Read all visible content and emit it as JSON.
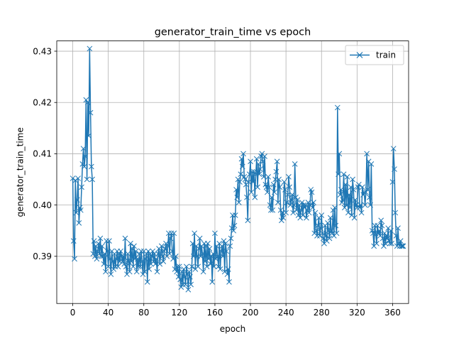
{
  "chart_data": {
    "type": "line",
    "title": "generator_train_time vs epoch",
    "xlabel": "epoch",
    "ylabel": "generator_train_time",
    "xlim": [
      -18,
      378
    ],
    "ylim": [
      0.3808,
      0.432
    ],
    "xticks": [
      0,
      40,
      80,
      120,
      160,
      200,
      240,
      280,
      320,
      360
    ],
    "yticks": [
      0.39,
      0.4,
      0.41,
      0.42,
      0.43
    ],
    "ytick_labels": [
      "0.39",
      "0.40",
      "0.41",
      "0.42",
      "0.43"
    ],
    "grid": true,
    "legend_position": "upper right",
    "series": [
      {
        "name": "train",
        "color": "#1f77b4",
        "marker": "x",
        "x_start": 0,
        "x_step": 1,
        "values": [
          0.4052,
          0.393,
          0.3895,
          0.4048,
          0.3985,
          0.401,
          0.4052,
          0.3965,
          0.3995,
          0.399,
          0.4035,
          0.408,
          0.411,
          0.4075,
          0.4095,
          0.4205,
          0.405,
          0.42,
          0.4135,
          0.4305,
          0.418,
          0.4075,
          0.405,
          0.3905,
          0.393,
          0.39,
          0.392,
          0.3895,
          0.391,
          0.3925,
          0.3905,
          0.3935,
          0.39,
          0.392,
          0.39,
          0.3885,
          0.3905,
          0.387,
          0.393,
          0.391,
          0.388,
          0.393,
          0.3895,
          0.3865,
          0.391,
          0.389,
          0.3875,
          0.3905,
          0.388,
          0.3895,
          0.391,
          0.388,
          0.3905,
          0.389,
          0.391,
          0.39,
          0.389,
          0.39,
          0.3885,
          0.3935,
          0.388,
          0.3865,
          0.3905,
          0.389,
          0.387,
          0.3925,
          0.389,
          0.3915,
          0.388,
          0.392,
          0.3895,
          0.391,
          0.387,
          0.3895,
          0.388,
          0.3905,
          0.388,
          0.391,
          0.389,
          0.3865,
          0.391,
          0.387,
          0.3895,
          0.3905,
          0.385,
          0.391,
          0.3875,
          0.3905,
          0.3885,
          0.39,
          0.391,
          0.389,
          0.3905,
          0.3885,
          0.3895,
          0.387,
          0.3905,
          0.3915,
          0.3885,
          0.3905,
          0.392,
          0.39,
          0.389,
          0.391,
          0.3915,
          0.3925,
          0.39,
          0.392,
          0.3945,
          0.3905,
          0.3935,
          0.3945,
          0.391,
          0.3895,
          0.3945,
          0.3875,
          0.39,
          0.387,
          0.388,
          0.386,
          0.388,
          0.3855,
          0.384,
          0.387,
          0.3845,
          0.3875,
          0.386,
          0.3845,
          0.388,
          0.3865,
          0.3835,
          0.387,
          0.386,
          0.3845,
          0.388,
          0.3925,
          0.39,
          0.3945,
          0.3875,
          0.392,
          0.39,
          0.388,
          0.3915,
          0.3935,
          0.39,
          0.392,
          0.3905,
          0.387,
          0.3925,
          0.389,
          0.392,
          0.388,
          0.3925,
          0.3895,
          0.3915,
          0.3885,
          0.39,
          0.385,
          0.3905,
          0.388,
          0.3945,
          0.3895,
          0.392,
          0.39,
          0.388,
          0.3925,
          0.3875,
          0.391,
          0.392,
          0.39,
          0.393,
          0.387,
          0.3925,
          0.391,
          0.3865,
          0.3875,
          0.385,
          0.392,
          0.3935,
          0.3955,
          0.398,
          0.395,
          0.396,
          0.398,
          0.403,
          0.4015,
          0.405,
          0.4005,
          0.4045,
          0.406,
          0.409,
          0.4075,
          0.41,
          0.4055,
          0.405,
          0.404,
          0.4015,
          0.397,
          0.4045,
          0.406,
          0.4085,
          0.4025,
          0.4065,
          0.4045,
          0.4065,
          0.4015,
          0.406,
          0.409,
          0.4035,
          0.408,
          0.406,
          0.407,
          0.4095,
          0.41,
          0.4085,
          0.4055,
          0.4095,
          0.404,
          0.4035,
          0.4025,
          0.4055,
          0.4035,
          0.4,
          0.399,
          0.4015,
          0.399,
          0.404,
          0.4025,
          0.405,
          0.4065,
          0.4085,
          0.4005,
          0.405,
          0.4035,
          0.399,
          0.397,
          0.3985,
          0.3975,
          0.4045,
          0.403,
          0.3985,
          0.4005,
          0.402,
          0.4055,
          0.4035,
          0.4,
          0.401,
          0.402,
          0.3985,
          0.4,
          0.408,
          0.4015,
          0.399,
          0.401,
          0.398,
          0.4,
          0.3975,
          0.399,
          0.4005,
          0.398,
          0.4,
          0.3995,
          0.4,
          0.3975,
          0.399,
          0.4005,
          0.3985,
          0.4,
          0.403,
          0.4025,
          0.3995,
          0.4005,
          0.3945,
          0.3985,
          0.395,
          0.394,
          0.396,
          0.3975,
          0.394,
          0.3955,
          0.398,
          0.3945,
          0.3935,
          0.3925,
          0.396,
          0.394,
          0.393,
          0.3965,
          0.395,
          0.3935,
          0.3975,
          0.395,
          0.3945,
          0.399,
          0.394,
          0.3995,
          0.396,
          0.3945,
          0.419,
          0.406,
          0.41,
          0.402,
          0.403,
          0.4005,
          0.401,
          0.406,
          0.3995,
          0.404,
          0.4,
          0.4055,
          0.3985,
          0.402,
          0.3995,
          0.4035,
          0.398,
          0.405,
          0.403,
          0.3975,
          0.401,
          0.4,
          0.3995,
          0.4035,
          0.404,
          0.3995,
          0.4,
          0.3985,
          0.4035,
          0.402,
          0.4025,
          0.4,
          0.4025,
          0.41,
          0.403,
          0.4085,
          0.4015,
          0.4,
          0.408,
          0.395,
          0.3945,
          0.392,
          0.396,
          0.3945,
          0.3925,
          0.396,
          0.3945,
          0.395,
          0.394,
          0.397,
          0.396,
          0.3935,
          0.392,
          0.3945,
          0.3925,
          0.394,
          0.3935,
          0.3955,
          0.393,
          0.3925,
          0.395,
          0.3925,
          0.4045,
          0.411,
          0.407,
          0.3985,
          0.394,
          0.392,
          0.3955,
          0.3925,
          0.392,
          0.393,
          0.392,
          0.392,
          0.392
        ]
      }
    ]
  }
}
